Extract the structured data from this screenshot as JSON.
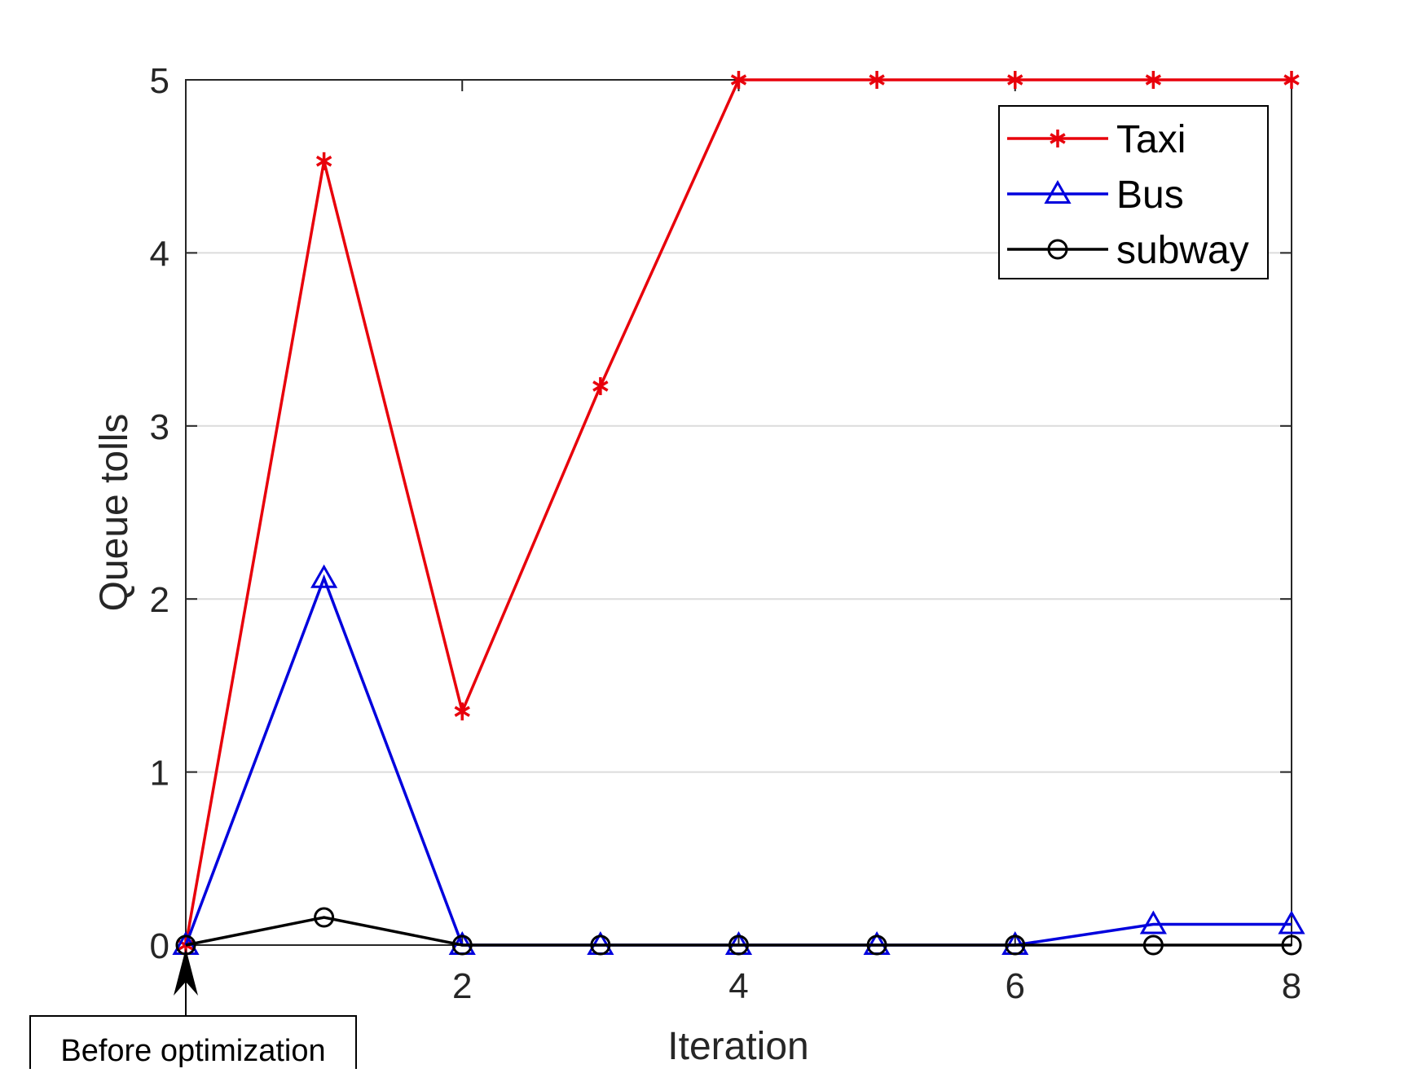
{
  "chart_data": {
    "type": "line",
    "xlabel": "Iteration",
    "ylabel": "Queue tolls",
    "xlim": [
      0,
      8
    ],
    "ylim": [
      0,
      5
    ],
    "xticks": [
      2,
      4,
      6,
      8
    ],
    "yticks": [
      0,
      1,
      2,
      3,
      4,
      5
    ],
    "grid": "horizontal",
    "legend_position": "top-right",
    "x": [
      0,
      1,
      2,
      3,
      4,
      5,
      6,
      7,
      8
    ],
    "series": [
      {
        "name": "Taxi",
        "color": "#e8000b",
        "marker": "asterisk",
        "values": [
          0,
          4.53,
          1.35,
          3.23,
          5,
          5,
          5,
          5,
          5
        ]
      },
      {
        "name": "Bus",
        "color": "#0000dd",
        "marker": "triangle",
        "values": [
          0,
          2.12,
          0,
          0,
          0,
          0,
          0,
          0.12,
          0.12
        ]
      },
      {
        "name": "subway",
        "color": "#000000",
        "marker": "circle",
        "values": [
          0,
          0.16,
          0,
          0,
          0,
          0,
          0,
          0,
          0
        ]
      }
    ],
    "annotation": {
      "text": "Before optimization",
      "x": 0,
      "y": 0
    }
  }
}
